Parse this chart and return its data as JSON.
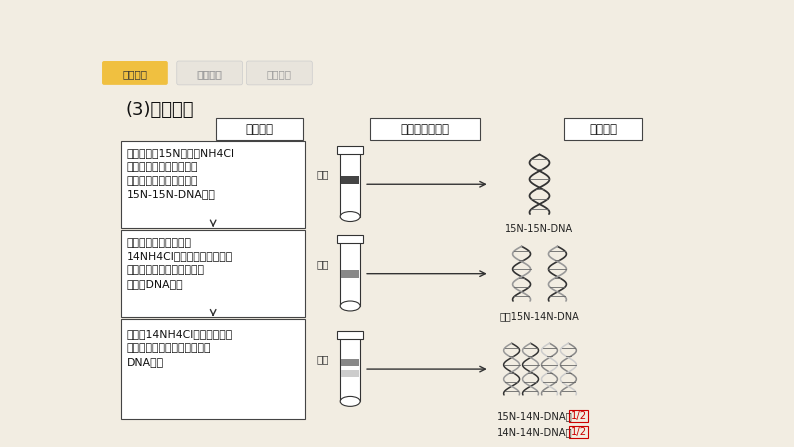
{
  "bg_color": "#f2ede2",
  "title": "(3)实验过程",
  "tab1_text": "教材梳理",
  "tab2_text": "题型探究",
  "tab3_text": "真题演练",
  "col_headers": [
    "实验步骤",
    "实验结果及图示",
    "图解分析"
  ],
  "row1_text": "用以同位素15N标记的NH4Cl\n为唯一氮源的培养液，培\n养大肠杆菌若干代，获得\n15N-15N-DNA分子",
  "row2_text": "将该大肠杆菌转移到以\n14NH4Cl为唯一氮源的培养液\n中培养，细胞分裂一次得到\n第一代DNA分子",
  "row3_text": "在含有14NH4Cl的培养液中培\n养，细胞分裂两次获得第二代\nDNA分子",
  "lixing_text": "离心",
  "label1": "15N-15N-DNA",
  "label2": "全为15N-14N-DNA",
  "label3a": "15N-14N-DNA占",
  "label3b": "1/2",
  "label4a": "14N-14N-DNA占",
  "label4b": "1/2",
  "red_color": "#cc0000",
  "dark_color": "#222222",
  "border_color": "#444444"
}
